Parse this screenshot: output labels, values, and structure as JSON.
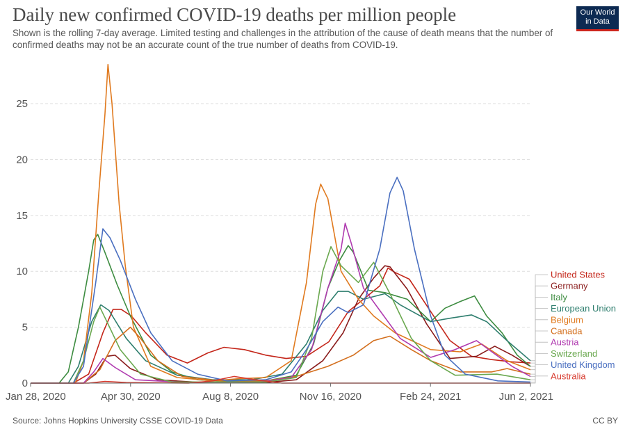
{
  "header": {
    "title": "Daily new confirmed COVID-19 deaths per million people",
    "subtitle": "Shown is the rolling 7-day average. Limited testing and challenges in the attribution of the cause of death means that the number of confirmed deaths may not be an accurate count of the true number of deaths from COVID-19.",
    "logo_line1": "Our World",
    "logo_line2": "in Data"
  },
  "footer": {
    "source": "Source: Johns Hopkins University CSSE COVID-19 Data",
    "license": "CC BY"
  },
  "colors": {
    "grid": "#dddddd",
    "axis": "#666666",
    "tick_text": "#555555"
  },
  "chart_data": {
    "type": "line",
    "title": "Daily new confirmed COVID-19 deaths per million people",
    "xlabel": "",
    "ylabel": "",
    "x_ticks": [
      "Jan 28, 2020",
      "Apr 30, 2020",
      "Aug 8, 2020",
      "Nov 16, 2020",
      "Feb 24, 2021",
      "Jun 2, 2021"
    ],
    "y_ticks": [
      0,
      5,
      10,
      15,
      20,
      25
    ],
    "xlim": [
      "2020-01-28",
      "2021-06-02"
    ],
    "ylim": [
      0,
      28.5
    ],
    "grid": true,
    "legend_position": "right",
    "series": [
      {
        "name": "United States",
        "color": "#c4261a",
        "points": [
          [
            "2020-01-28",
            0
          ],
          [
            "2020-03-10",
            0
          ],
          [
            "2020-03-25",
            0.8
          ],
          [
            "2020-04-08",
            4.5
          ],
          [
            "2020-04-18",
            6.6
          ],
          [
            "2020-04-26",
            6.6
          ],
          [
            "2020-05-06",
            6
          ],
          [
            "2020-05-20",
            4.5
          ],
          [
            "2020-06-10",
            2.5
          ],
          [
            "2020-06-30",
            1.8
          ],
          [
            "2020-07-20",
            2.7
          ],
          [
            "2020-08-05",
            3.2
          ],
          [
            "2020-08-25",
            3
          ],
          [
            "2020-09-15",
            2.5
          ],
          [
            "2020-10-05",
            2.2
          ],
          [
            "2020-10-25",
            2.4
          ],
          [
            "2020-11-16",
            3.7
          ],
          [
            "2020-12-05",
            6.4
          ],
          [
            "2020-12-20",
            7.5
          ],
          [
            "2021-01-05",
            8.7
          ],
          [
            "2021-01-13",
            10.3
          ],
          [
            "2021-01-20",
            9.9
          ],
          [
            "2021-02-03",
            9.3
          ],
          [
            "2021-02-24",
            6.4
          ],
          [
            "2021-03-15",
            3.8
          ],
          [
            "2021-04-05",
            2.4
          ],
          [
            "2021-04-25",
            2.1
          ],
          [
            "2021-05-15",
            1.9
          ],
          [
            "2021-06-02",
            1.8
          ]
        ]
      },
      {
        "name": "Germany",
        "color": "#8a1c1c",
        "points": [
          [
            "2020-01-28",
            0
          ],
          [
            "2020-03-20",
            0
          ],
          [
            "2020-04-01",
            0.8
          ],
          [
            "2020-04-12",
            2.4
          ],
          [
            "2020-04-20",
            2.5
          ],
          [
            "2020-05-05",
            1.3
          ],
          [
            "2020-06-01",
            0.3
          ],
          [
            "2020-07-15",
            0.05
          ],
          [
            "2020-09-15",
            0.05
          ],
          [
            "2020-10-15",
            0.3
          ],
          [
            "2020-11-10",
            2
          ],
          [
            "2020-11-30",
            4.5
          ],
          [
            "2020-12-15",
            7.5
          ],
          [
            "2020-12-30",
            9.4
          ],
          [
            "2021-01-10",
            10.5
          ],
          [
            "2021-01-15",
            10.4
          ],
          [
            "2021-02-01",
            8.4
          ],
          [
            "2021-02-20",
            5.3
          ],
          [
            "2021-03-15",
            2.2
          ],
          [
            "2021-04-10",
            2.4
          ],
          [
            "2021-04-28",
            3.3
          ],
          [
            "2021-05-15",
            2.5
          ],
          [
            "2021-06-02",
            1.5
          ]
        ]
      },
      {
        "name": "Italy",
        "color": "#3d8c40",
        "points": [
          [
            "2020-01-28",
            0
          ],
          [
            "2020-02-25",
            0
          ],
          [
            "2020-03-05",
            1
          ],
          [
            "2020-03-15",
            5
          ],
          [
            "2020-03-25",
            10
          ],
          [
            "2020-03-30",
            12.8
          ],
          [
            "2020-04-03",
            13.3
          ],
          [
            "2020-04-10",
            11.7
          ],
          [
            "2020-04-22",
            8.8
          ],
          [
            "2020-05-05",
            6
          ],
          [
            "2020-05-25",
            2.5
          ],
          [
            "2020-06-15",
            1
          ],
          [
            "2020-07-10",
            0.3
          ],
          [
            "2020-08-20",
            0.1
          ],
          [
            "2020-09-15",
            0.2
          ],
          [
            "2020-10-15",
            0.7
          ],
          [
            "2020-11-01",
            3.5
          ],
          [
            "2020-11-15",
            8.5
          ],
          [
            "2020-11-26",
            10.9
          ],
          [
            "2020-12-05",
            12.3
          ],
          [
            "2020-12-10",
            11.7
          ],
          [
            "2020-12-25",
            8.3
          ],
          [
            "2021-01-10",
            8.1
          ],
          [
            "2021-02-01",
            7.5
          ],
          [
            "2021-02-24",
            5.5
          ],
          [
            "2021-03-10",
            6.7
          ],
          [
            "2021-03-25",
            7.3
          ],
          [
            "2021-04-08",
            7.8
          ],
          [
            "2021-04-20",
            6
          ],
          [
            "2021-05-05",
            4.5
          ],
          [
            "2021-05-20",
            2.5
          ],
          [
            "2021-06-02",
            1.5
          ]
        ]
      },
      {
        "name": "European Union",
        "color": "#2e7e6e",
        "points": [
          [
            "2020-01-28",
            0
          ],
          [
            "2020-03-05",
            0
          ],
          [
            "2020-03-15",
            1.5
          ],
          [
            "2020-03-28",
            5.5
          ],
          [
            "2020-04-06",
            7
          ],
          [
            "2020-04-14",
            6.5
          ],
          [
            "2020-05-01",
            4
          ],
          [
            "2020-05-20",
            2
          ],
          [
            "2020-06-20",
            0.7
          ],
          [
            "2020-07-25",
            0.3
          ],
          [
            "2020-09-01",
            0.3
          ],
          [
            "2020-10-01",
            0.8
          ],
          [
            "2020-10-25",
            3.5
          ],
          [
            "2020-11-10",
            6.5
          ],
          [
            "2020-11-25",
            8.2
          ],
          [
            "2020-12-05",
            8.2
          ],
          [
            "2020-12-20",
            7.5
          ],
          [
            "2021-01-10",
            8
          ],
          [
            "2021-01-25",
            7
          ],
          [
            "2021-02-24",
            5.5
          ],
          [
            "2021-03-15",
            5.8
          ],
          [
            "2021-04-05",
            6.1
          ],
          [
            "2021-04-20",
            5.5
          ],
          [
            "2021-05-10",
            3.8
          ],
          [
            "2021-06-02",
            2
          ]
        ]
      },
      {
        "name": "Belgium",
        "color": "#e07a1f",
        "points": [
          [
            "2020-01-28",
            0
          ],
          [
            "2020-03-12",
            0
          ],
          [
            "2020-03-20",
            2
          ],
          [
            "2020-03-28",
            8
          ],
          [
            "2020-04-04",
            17
          ],
          [
            "2020-04-10",
            24
          ],
          [
            "2020-04-13",
            28.5
          ],
          [
            "2020-04-17",
            25
          ],
          [
            "2020-04-24",
            16
          ],
          [
            "2020-04-30",
            10.5
          ],
          [
            "2020-05-08",
            5
          ],
          [
            "2020-05-25",
            1.5
          ],
          [
            "2020-06-20",
            0.5
          ],
          [
            "2020-07-25",
            0.2
          ],
          [
            "2020-08-20",
            0.4
          ],
          [
            "2020-09-15",
            0.5
          ],
          [
            "2020-10-10",
            2
          ],
          [
            "2020-10-25",
            9
          ],
          [
            "2020-11-03",
            16
          ],
          [
            "2020-11-08",
            17.8
          ],
          [
            "2020-11-15",
            16.5
          ],
          [
            "2020-11-28",
            10
          ],
          [
            "2020-12-15",
            7.5
          ],
          [
            "2020-12-30",
            6
          ],
          [
            "2021-01-20",
            4.5
          ],
          [
            "2021-02-24",
            3
          ],
          [
            "2021-03-25",
            2.8
          ],
          [
            "2021-04-15",
            3.5
          ],
          [
            "2021-05-10",
            2
          ],
          [
            "2021-06-02",
            1.2
          ]
        ]
      },
      {
        "name": "Canada",
        "color": "#d36e1c",
        "points": [
          [
            "2020-01-28",
            0
          ],
          [
            "2020-03-20",
            0
          ],
          [
            "2020-04-05",
            1.2
          ],
          [
            "2020-04-20",
            3.8
          ],
          [
            "2020-05-05",
            5
          ],
          [
            "2020-05-15",
            4
          ],
          [
            "2020-06-01",
            2
          ],
          [
            "2020-06-25",
            0.6
          ],
          [
            "2020-08-01",
            0.2
          ],
          [
            "2020-09-15",
            0.2
          ],
          [
            "2020-10-15",
            0.6
          ],
          [
            "2020-11-15",
            1.5
          ],
          [
            "2020-12-10",
            2.5
          ],
          [
            "2020-12-30",
            3.8
          ],
          [
            "2021-01-15",
            4.2
          ],
          [
            "2021-02-05",
            3
          ],
          [
            "2021-02-24",
            2
          ],
          [
            "2021-03-25",
            1
          ],
          [
            "2021-04-25",
            1
          ],
          [
            "2021-05-10",
            1.3
          ],
          [
            "2021-06-02",
            0.8
          ]
        ]
      },
      {
        "name": "Austria",
        "color": "#b03bb0",
        "points": [
          [
            "2020-01-28",
            0
          ],
          [
            "2020-03-20",
            0
          ],
          [
            "2020-03-30",
            1
          ],
          [
            "2020-04-08",
            2.2
          ],
          [
            "2020-04-20",
            1.4
          ],
          [
            "2020-05-10",
            0.3
          ],
          [
            "2020-07-01",
            0.05
          ],
          [
            "2020-09-10",
            0.1
          ],
          [
            "2020-10-10",
            0.5
          ],
          [
            "2020-10-30",
            3
          ],
          [
            "2020-11-15",
            8.5
          ],
          [
            "2020-11-28",
            12
          ],
          [
            "2020-12-02",
            14.3
          ],
          [
            "2020-12-08",
            12.5
          ],
          [
            "2020-12-20",
            8.5
          ],
          [
            "2021-01-05",
            6.5
          ],
          [
            "2021-01-25",
            4
          ],
          [
            "2021-02-24",
            2.3
          ],
          [
            "2021-03-20",
            3
          ],
          [
            "2021-04-10",
            3.8
          ],
          [
            "2021-04-25",
            2.8
          ],
          [
            "2021-05-15",
            1.5
          ],
          [
            "2021-06-02",
            0.6
          ]
        ]
      },
      {
        "name": "Switzerland",
        "color": "#6aa84f",
        "points": [
          [
            "2020-01-28",
            0
          ],
          [
            "2020-03-10",
            0
          ],
          [
            "2020-03-20",
            2
          ],
          [
            "2020-03-30",
            5.5
          ],
          [
            "2020-04-05",
            6.8
          ],
          [
            "2020-04-12",
            5.5
          ],
          [
            "2020-04-25",
            3
          ],
          [
            "2020-05-15",
            0.8
          ],
          [
            "2020-06-15",
            0.1
          ],
          [
            "2020-09-15",
            0.1
          ],
          [
            "2020-10-15",
            0.5
          ],
          [
            "2020-10-30",
            4
          ],
          [
            "2020-11-10",
            10
          ],
          [
            "2020-11-18",
            12.2
          ],
          [
            "2020-11-28",
            10.5
          ],
          [
            "2020-12-15",
            9
          ],
          [
            "2020-12-30",
            10.8
          ],
          [
            "2021-01-15",
            8
          ],
          [
            "2021-02-05",
            4
          ],
          [
            "2021-02-24",
            2
          ],
          [
            "2021-03-20",
            0.7
          ],
          [
            "2021-04-30",
            0.8
          ],
          [
            "2021-06-02",
            0.3
          ]
        ]
      },
      {
        "name": "United Kingdom",
        "color": "#4a6fc0",
        "points": [
          [
            "2020-01-28",
            0
          ],
          [
            "2020-03-10",
            0
          ],
          [
            "2020-03-20",
            1.5
          ],
          [
            "2020-04-01",
            9
          ],
          [
            "2020-04-08",
            13.8
          ],
          [
            "2020-04-15",
            13
          ],
          [
            "2020-04-25",
            11
          ],
          [
            "2020-05-10",
            7.5
          ],
          [
            "2020-05-25",
            4.5
          ],
          [
            "2020-06-15",
            2
          ],
          [
            "2020-07-10",
            0.8
          ],
          [
            "2020-08-08",
            0.2
          ],
          [
            "2020-09-15",
            0.3
          ],
          [
            "2020-10-10",
            1
          ],
          [
            "2020-10-25",
            3
          ],
          [
            "2020-11-10",
            5.5
          ],
          [
            "2020-11-25",
            6.8
          ],
          [
            "2020-12-05",
            6.3
          ],
          [
            "2020-12-20",
            7
          ],
          [
            "2021-01-05",
            12
          ],
          [
            "2021-01-15",
            17
          ],
          [
            "2021-01-22",
            18.4
          ],
          [
            "2021-01-28",
            17.2
          ],
          [
            "2021-02-08",
            12
          ],
          [
            "2021-02-24",
            6
          ],
          [
            "2021-03-10",
            2.5
          ],
          [
            "2021-03-30",
            0.8
          ],
          [
            "2021-05-01",
            0.2
          ],
          [
            "2021-06-02",
            0.1
          ]
        ]
      },
      {
        "name": "Australia",
        "color": "#d73a2e",
        "points": [
          [
            "2020-01-28",
            0
          ],
          [
            "2020-03-25",
            0
          ],
          [
            "2020-04-10",
            0.15
          ],
          [
            "2020-05-01",
            0.05
          ],
          [
            "2020-07-01",
            0
          ],
          [
            "2020-07-25",
            0.2
          ],
          [
            "2020-08-15",
            0.6
          ],
          [
            "2020-09-05",
            0.3
          ],
          [
            "2020-10-01",
            0
          ],
          [
            "2021-06-02",
            0
          ]
        ]
      }
    ]
  }
}
